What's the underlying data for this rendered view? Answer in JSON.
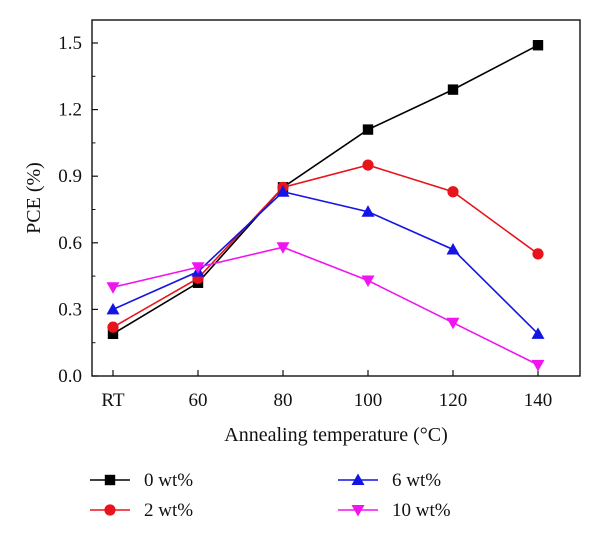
{
  "chart_data": {
    "type": "line",
    "categories": [
      "RT",
      "60",
      "80",
      "100",
      "120",
      "140"
    ],
    "xlabel": "Annealing temperature (°C)",
    "ylabel": "PCE (%)",
    "ylim": [
      0,
      1.5
    ],
    "yticks": [
      "0.0",
      "0.3",
      "0.6",
      "0.9",
      "1.2",
      "1.5"
    ],
    "grid": false,
    "legend_position": "bottom",
    "series": [
      {
        "name": "0 wt%",
        "color": "#000000",
        "marker": "square",
        "values": [
          0.19,
          0.42,
          0.85,
          1.11,
          1.29,
          1.49
        ]
      },
      {
        "name": "2 wt%",
        "color": "#e8141b",
        "marker": "circle",
        "values": [
          0.22,
          0.44,
          0.85,
          0.95,
          0.83,
          0.55
        ]
      },
      {
        "name": "6 wt%",
        "color": "#1414e6",
        "marker": "triangle-up",
        "values": [
          0.3,
          0.47,
          0.83,
          0.74,
          0.57,
          0.19
        ]
      },
      {
        "name": "10 wt%",
        "color": "#f014f0",
        "marker": "triangle-down",
        "values": [
          0.4,
          0.49,
          0.58,
          0.43,
          0.24,
          0.05
        ]
      }
    ]
  }
}
